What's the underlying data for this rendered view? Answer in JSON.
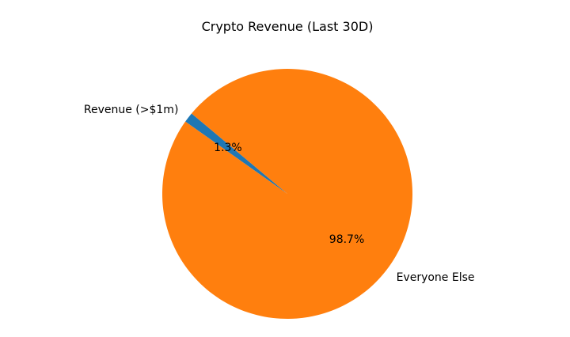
{
  "chart_data": {
    "type": "pie",
    "title": "Crypto Revenue (Last 30D)",
    "labels": [
      "Revenue (>$1m)",
      "Everyone Else"
    ],
    "values": [
      1.3,
      98.7
    ],
    "percent_labels": [
      "1.3%",
      "98.7%"
    ],
    "colors": [
      "#1f77b4",
      "#ff7f0e"
    ],
    "start_angle_deg": 140,
    "direction": "counterclockwise"
  }
}
